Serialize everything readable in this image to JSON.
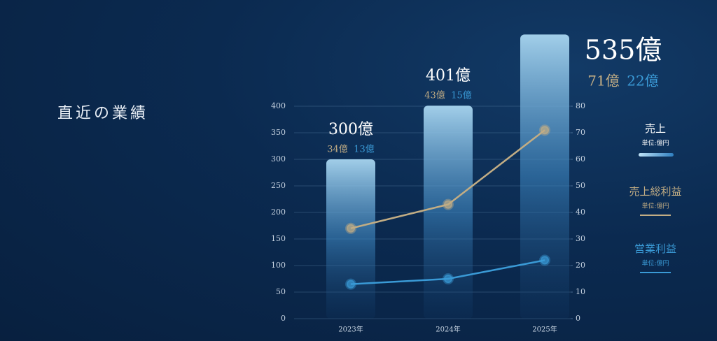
{
  "chart_data": {
    "type": "bar",
    "title": "直近の業績",
    "categories": [
      "2023年",
      "2024年",
      "2025年"
    ],
    "series": [
      {
        "name": "売上",
        "unit": "単位:億円",
        "type": "bar",
        "color": "#8cc6ea",
        "values": [
          300,
          401,
          535
        ],
        "value_labels": [
          "300億",
          "401億",
          "535億"
        ]
      },
      {
        "name": "売上総利益",
        "unit": "単位:億円",
        "type": "line",
        "axis": "y2",
        "color": "#c2ad84",
        "values": [
          34,
          43,
          71
        ],
        "value_labels": [
          "34億",
          "43億",
          "71億"
        ]
      },
      {
        "name": "営業利益",
        "unit": "単位:億円",
        "type": "line",
        "axis": "y2",
        "color": "#3a9ad6",
        "values": [
          13,
          15,
          22
        ],
        "value_labels": [
          "13億",
          "15億",
          "22億"
        ]
      }
    ],
    "ylim": [
      0,
      400
    ],
    "yticks": [
      0,
      50,
      100,
      150,
      200,
      250,
      300,
      350,
      400
    ],
    "y2lim": [
      0,
      80
    ],
    "y2ticks": [
      0,
      10,
      20,
      30,
      40,
      50,
      60,
      70,
      80
    ],
    "grid": true,
    "legend": "right"
  }
}
